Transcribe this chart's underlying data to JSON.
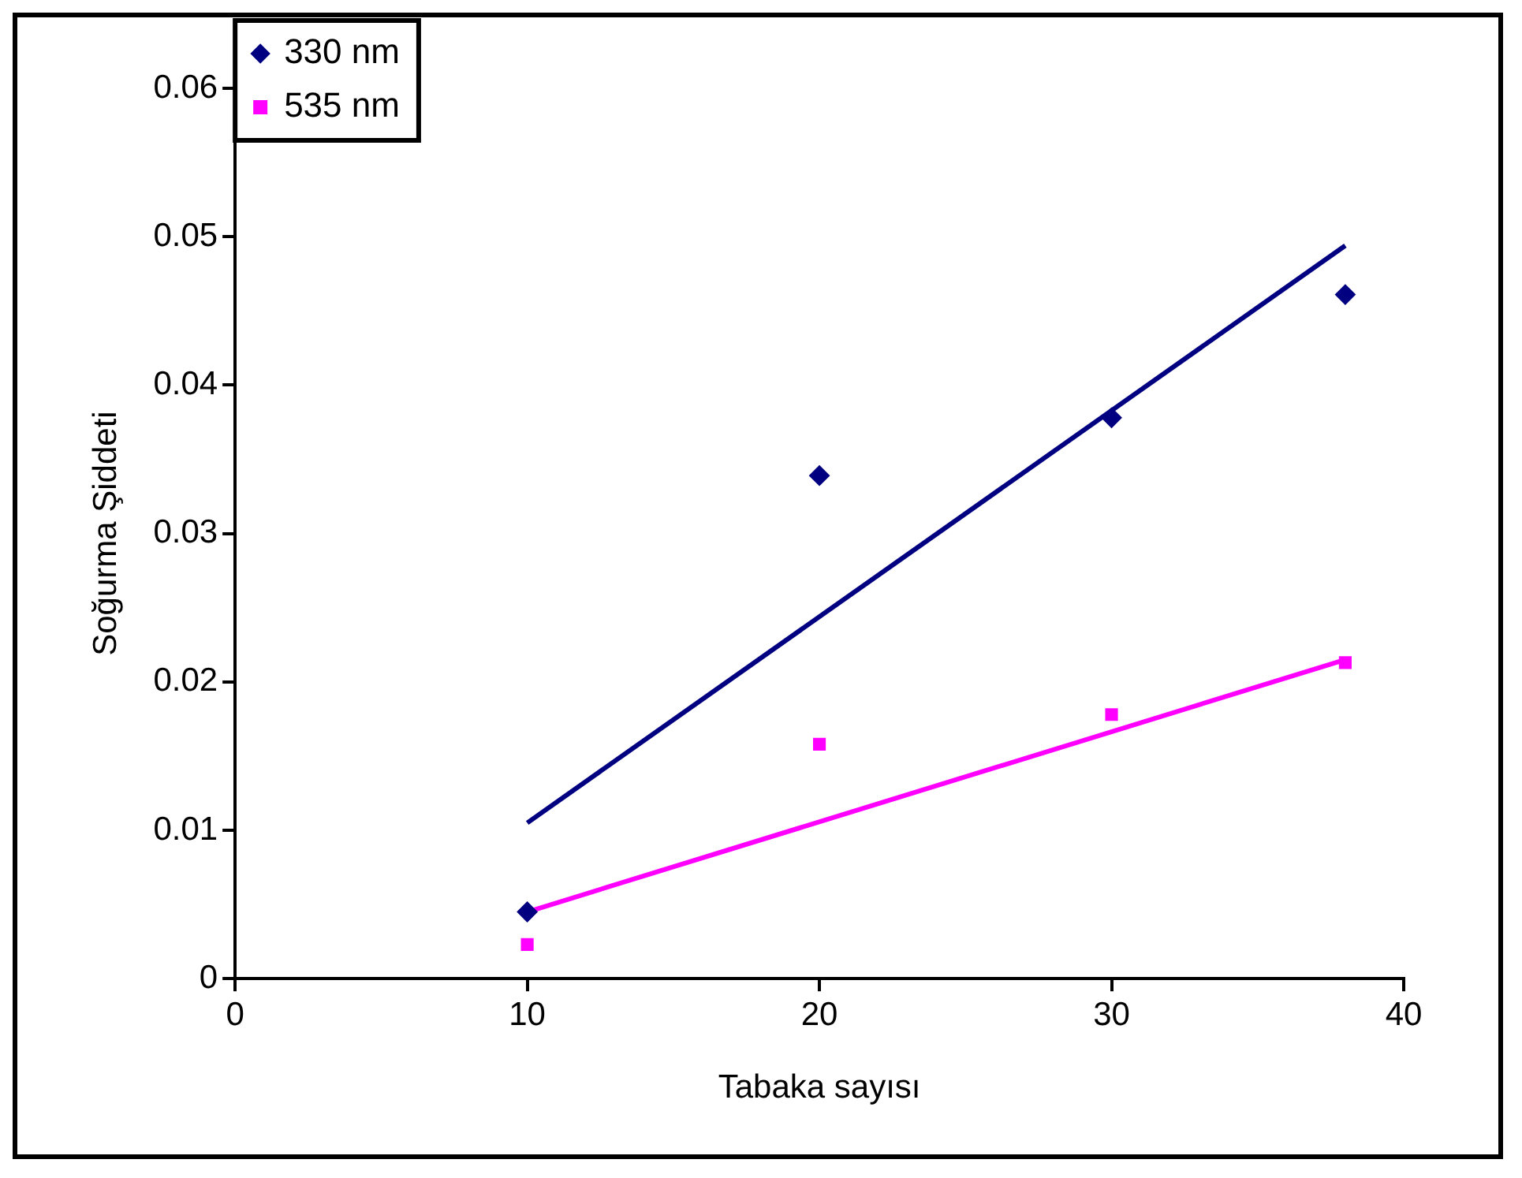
{
  "chart_data": {
    "type": "scatter",
    "xlabel": "Tabaka sayısı",
    "ylabel": "Soğurma Şiddeti",
    "xlim": [
      0,
      40
    ],
    "xticks": [
      0,
      10,
      20,
      30,
      40
    ],
    "ylim": [
      0,
      0.06
    ],
    "yticks": [
      0,
      0.01,
      0.02,
      0.03,
      0.04,
      0.05,
      0.06
    ],
    "grid": false,
    "legend": "top left",
    "series": [
      {
        "name": "330 nm",
        "color": "#000080",
        "marker": "diamond",
        "x": [
          10,
          20,
          30,
          38
        ],
        "values": [
          0.0045,
          0.0339,
          0.0378,
          0.0461
        ]
      },
      {
        "name": "535 nm",
        "color": "#ff00ff",
        "marker": "square",
        "x": [
          10,
          20,
          30,
          38
        ],
        "values": [
          0.0023,
          0.0158,
          0.0178,
          0.0213
        ]
      },
      {
        "type": "line",
        "color": "#000080",
        "marker": "none",
        "x": [
          10,
          38
        ],
        "values": [
          0.0105,
          0.0494
        ]
      },
      {
        "type": "line",
        "color": "#ff00ff",
        "marker": "none",
        "x": [
          10,
          38
        ],
        "values": [
          0.0045,
          0.0215
        ]
      }
    ]
  }
}
